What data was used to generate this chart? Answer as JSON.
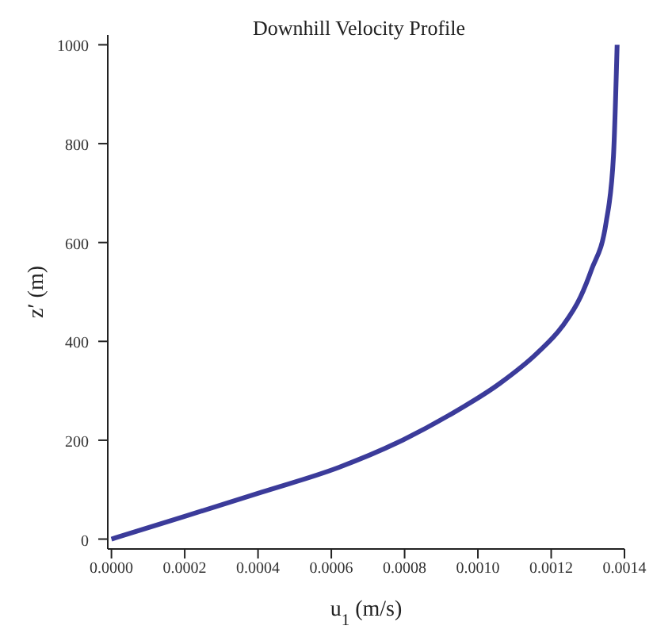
{
  "chart_data": {
    "type": "line",
    "title": "Downhill Velocity Profile",
    "xlabel": "u$_{1}$ (m/s)",
    "ylabel": "z′ (m)",
    "x": [
      0,
      0.0002,
      0.00041,
      0.00062,
      0.00078,
      0.00092,
      0.00106,
      0.00116,
      0.00123,
      0.00128,
      0.00131,
      0.00135,
      0.00137,
      0.00138
    ],
    "series": [
      {
        "color": "#3b3b9a",
        "values": [
          0,
          46,
          95,
          145,
          195,
          250,
          315,
          375,
          430,
          490,
          545,
          641,
          775,
          1000
        ]
      }
    ],
    "xlim": [
      -1e-05,
      0.0014
    ],
    "ylim": [
      -20,
      1020
    ],
    "xticks": [
      {
        "value": 0,
        "label": "0.0000"
      },
      {
        "value": 0.0002,
        "label": "0.0002"
      },
      {
        "value": 0.0004,
        "label": "0.0004"
      },
      {
        "value": 0.0006,
        "label": "0.0006"
      },
      {
        "value": 0.0008,
        "label": "0.0008"
      },
      {
        "value": 0.001,
        "label": "0.0010"
      },
      {
        "value": 0.0012,
        "label": "0.0012"
      },
      {
        "value": 0.0014,
        "label": "0.0014"
      }
    ],
    "yticks": [
      0,
      200,
      400,
      600,
      800,
      1000
    ],
    "grid": false,
    "legend": false,
    "marker": "none",
    "line_style": "solid"
  }
}
